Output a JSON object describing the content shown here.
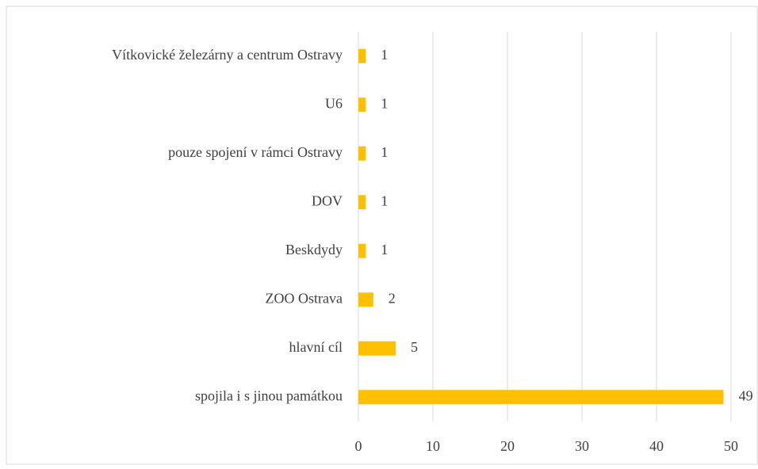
{
  "chart_data": {
    "type": "bar",
    "orientation": "horizontal",
    "categories": [
      "Vítkovické železárny a centrum Ostravy",
      "U6",
      "pouze spojení v rámci Ostravy",
      "DOV",
      "Beskdydy",
      "ZOO Ostrava",
      "hlavní cíl",
      "spojila i s jinou památkou"
    ],
    "values": [
      1,
      1,
      1,
      1,
      1,
      2,
      5,
      49
    ],
    "color": "#ffc000",
    "xlim": [
      0,
      50
    ],
    "xticks": [
      0,
      10,
      20,
      30,
      40,
      50
    ],
    "grid": true
  }
}
